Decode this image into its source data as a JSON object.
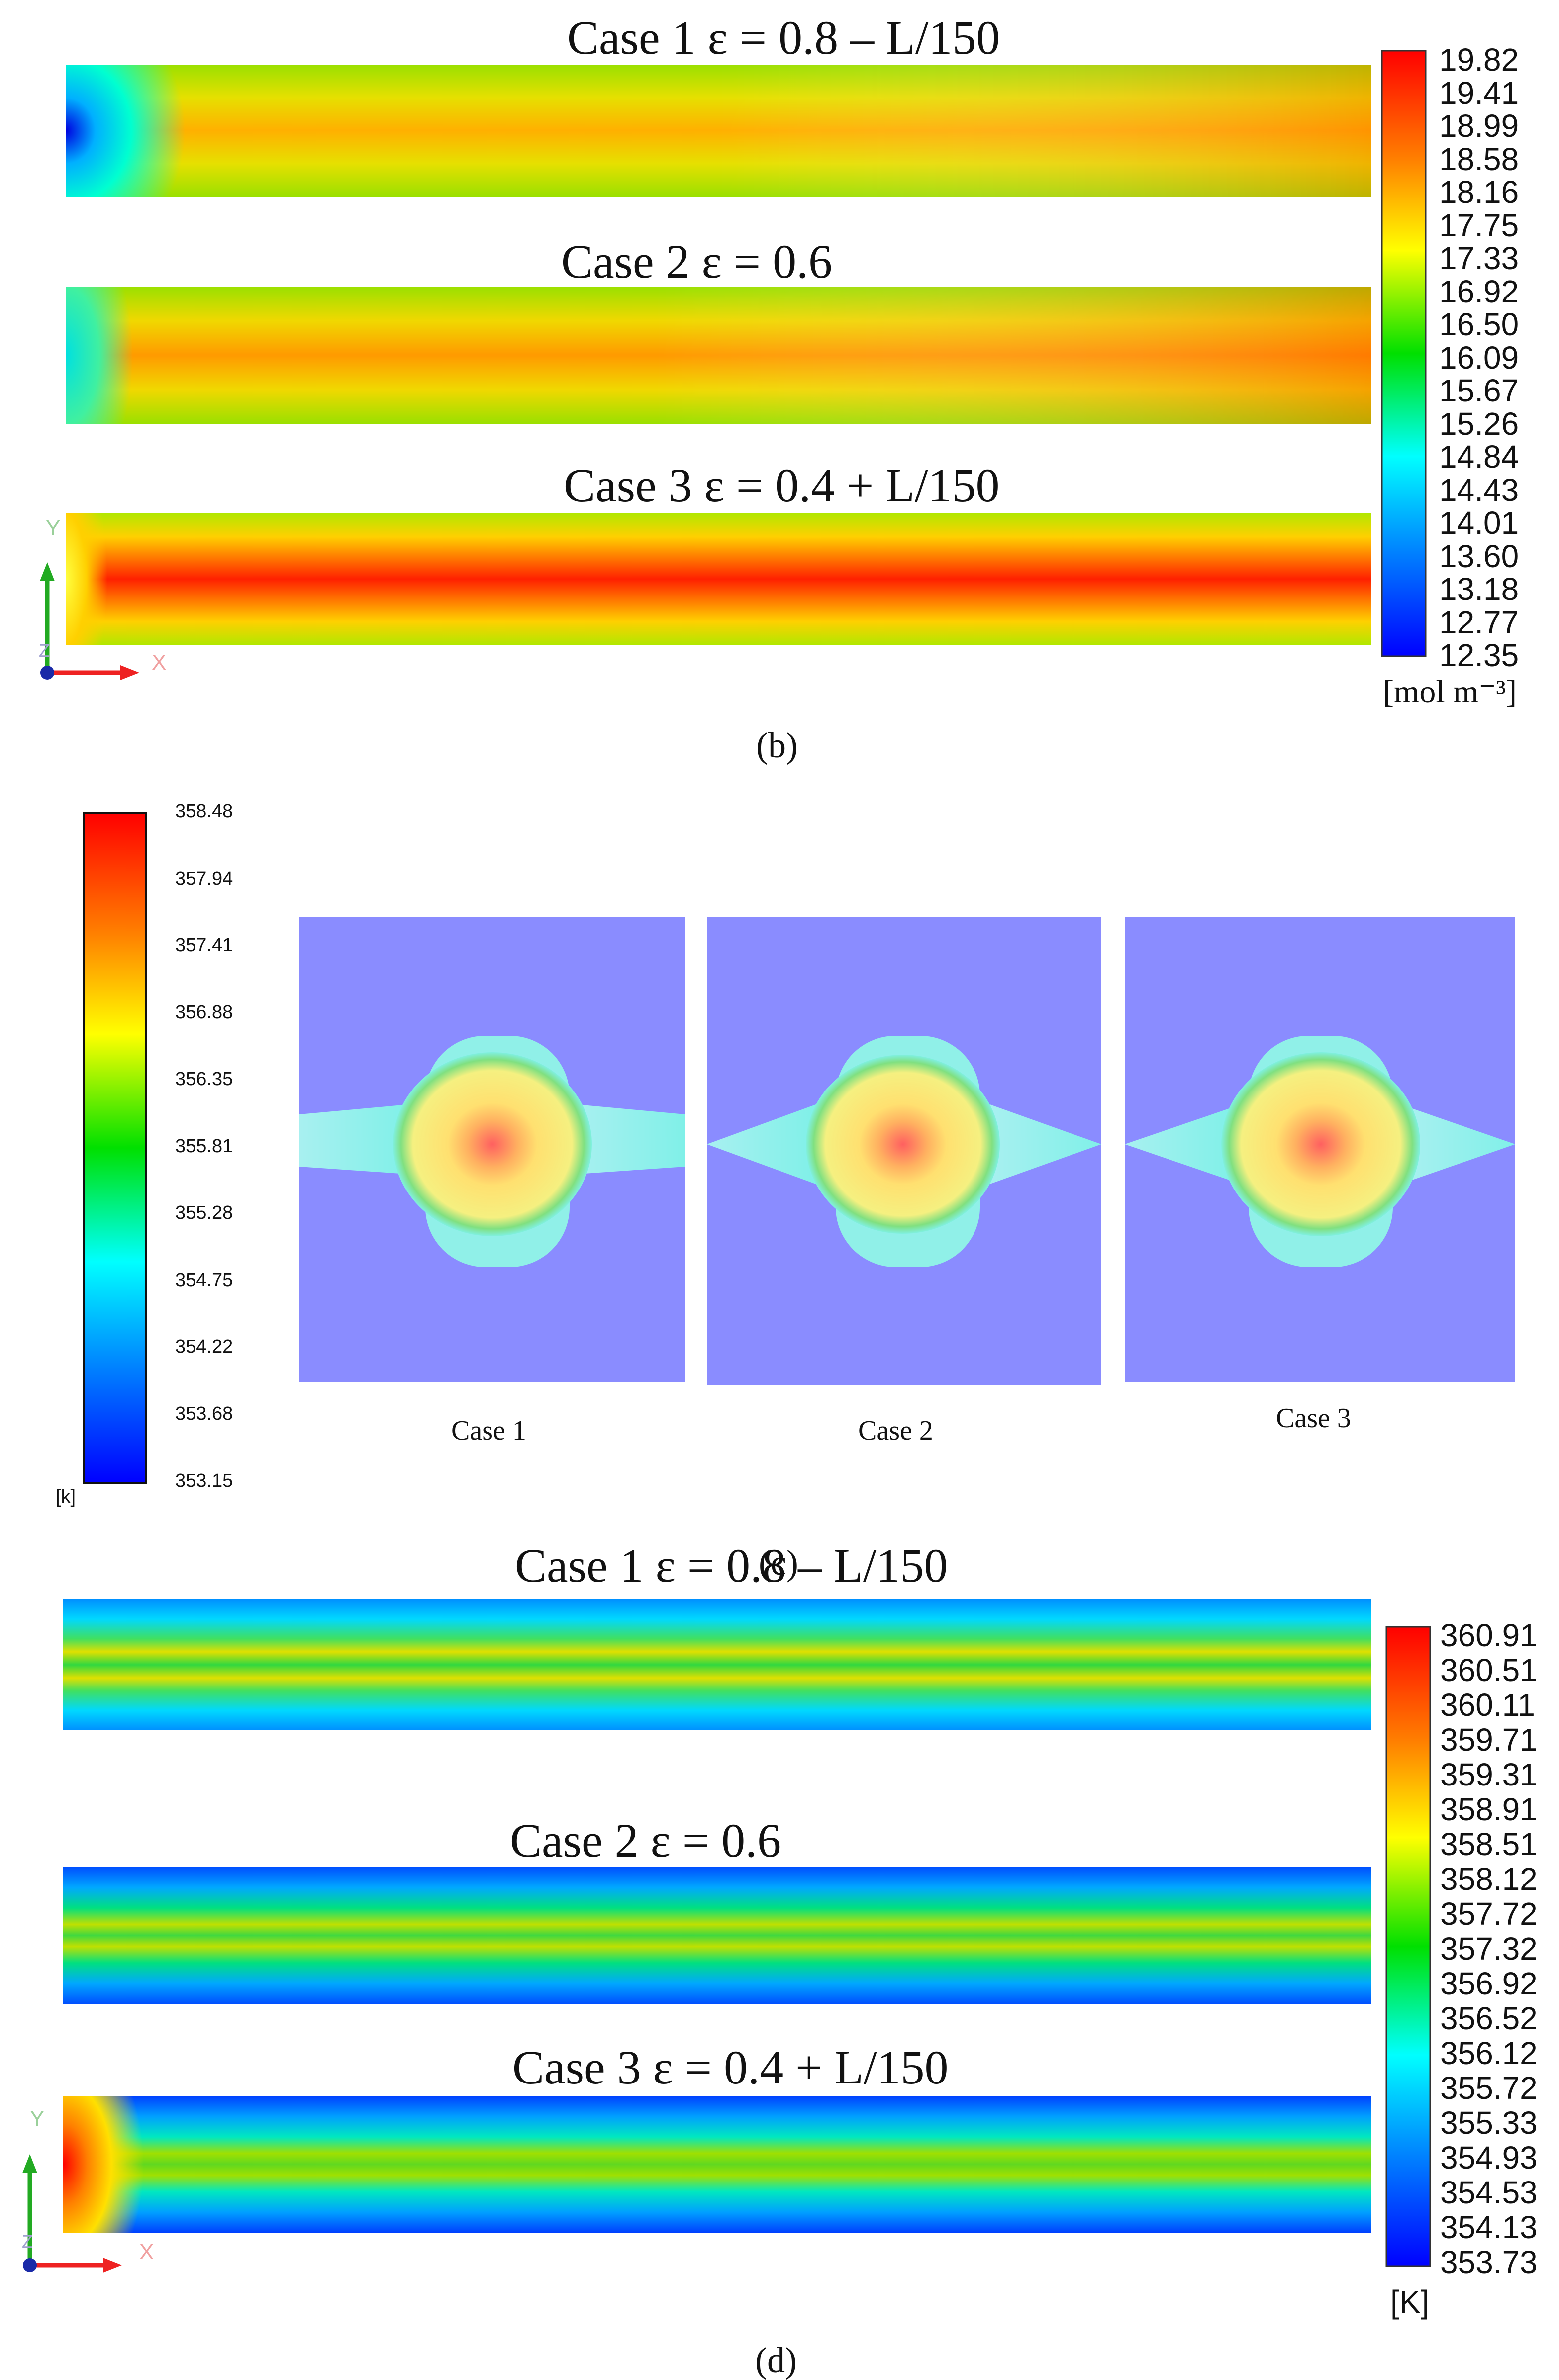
{
  "panel_b": {
    "label": "(b)",
    "cases": [
      {
        "title": "Case 1 ε = 0.8 – L/150"
      },
      {
        "title": "Case 2 ε = 0.6"
      },
      {
        "title": "Case 3 ε = 0.4 + L/150"
      }
    ],
    "legend": {
      "ticks": [
        "19.82",
        "19.41",
        "18.99",
        "18.58",
        "18.16",
        "17.75",
        "17.33",
        "16.92",
        "16.50",
        "16.09",
        "15.67",
        "15.26",
        "14.84",
        "14.43",
        "14.01",
        "13.60",
        "13.18",
        "12.77",
        "12.35"
      ],
      "unit": "[mol m⁻³]",
      "min": 12.35,
      "max": 19.82
    },
    "axis": {
      "y": "Y",
      "x": "X",
      "z": "Z"
    }
  },
  "panel_c": {
    "label": "(c)",
    "legend": {
      "ticks": [
        "358.48",
        "357.94",
        "357.41",
        "356.88",
        "356.35",
        "355.81",
        "355.28",
        "354.75",
        "354.22",
        "353.68",
        "353.15"
      ],
      "unit": "[k]",
      "min": 353.15,
      "max": 358.48
    },
    "cases": [
      {
        "label": "Case 1"
      },
      {
        "label": "Case 2"
      },
      {
        "label": "Case 3"
      }
    ]
  },
  "panel_d": {
    "label": "(d)",
    "cases": [
      {
        "title": "Case 1 ε = 0.8 – L/150"
      },
      {
        "title": "Case 2 ε = 0.6"
      },
      {
        "title": "Case 3 ε = 0.4 + L/150"
      }
    ],
    "legend": {
      "ticks": [
        "360.91",
        "360.51",
        "360.11",
        "359.71",
        "359.31",
        "358.91",
        "358.51",
        "358.12",
        "357.72",
        "357.32",
        "356.92",
        "356.52",
        "356.12",
        "355.72",
        "355.33",
        "354.93",
        "354.53",
        "354.13",
        "353.73"
      ],
      "unit": "[K]",
      "min": 353.73,
      "max": 360.91
    },
    "axis": {
      "y": "Y",
      "x": "X",
      "z": "Z"
    }
  },
  "colors": {
    "red": "#ff0000",
    "orange": "#ff8c00",
    "yellow": "#ffff00",
    "green": "#00e000",
    "cyan": "#00ffff",
    "blue": "#0000ff",
    "periwinkle": "#8a8cff",
    "axis_green": "#22aa22",
    "axis_red": "#ee2222"
  }
}
